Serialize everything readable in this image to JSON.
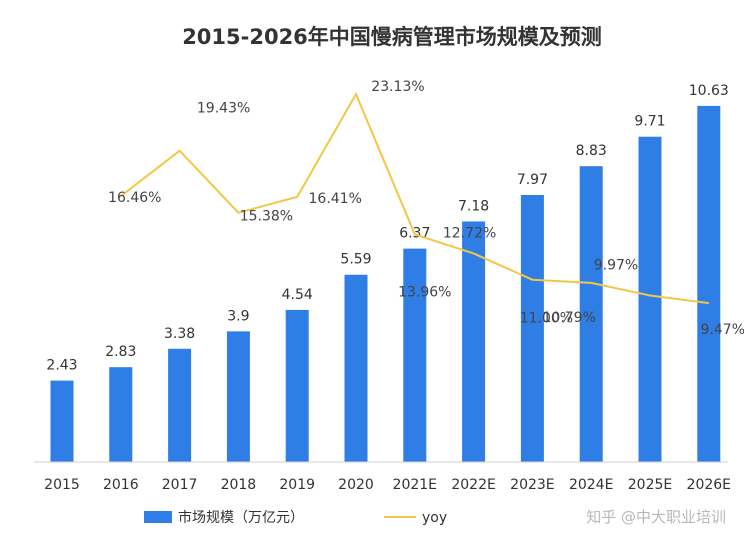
{
  "chart_data": {
    "type": "bar",
    "title": "2015-2026年中国慢病管理市场规模及预测",
    "categories": [
      "2015",
      "2016",
      "2017",
      "2018",
      "2019",
      "2020",
      "2021E",
      "2022E",
      "2023E",
      "2024E",
      "2025E",
      "2026E"
    ],
    "series": [
      {
        "name": "市场规模（万亿元）",
        "type": "bar",
        "color": "#2f7ee6",
        "values": [
          2.43,
          2.83,
          3.38,
          3.9,
          4.54,
          5.59,
          6.37,
          7.18,
          7.97,
          8.83,
          9.71,
          10.63
        ],
        "labels": [
          "2.43",
          "2.83",
          "3.38",
          "3.9",
          "4.54",
          "5.59",
          "6.37",
          "7.18",
          "7.97",
          "8.83",
          "9.71",
          "10.63"
        ]
      },
      {
        "name": "yoy",
        "type": "line",
        "color": "#f2c744",
        "values": [
          null,
          16.46,
          19.43,
          15.38,
          16.41,
          23.13,
          13.96,
          12.72,
          11.0,
          10.79,
          9.97,
          9.47
        ],
        "labels": [
          "",
          "16.46%",
          "19.43%",
          "15.38%",
          "16.41%",
          "23.13%",
          "13.96%",
          "12.72%",
          "11.00%",
          "10.79%",
          "9.97%",
          "9.47%"
        ]
      }
    ],
    "legend": "bottom-left",
    "grid": false
  },
  "watermark": "知乎 @中大职业培训"
}
